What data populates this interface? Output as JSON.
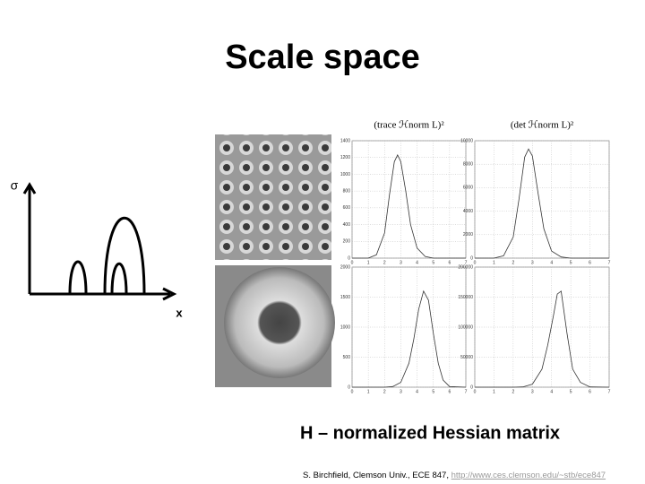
{
  "title": "Scale space",
  "sigma_label": "σ",
  "x_label": "x",
  "caption": "H – normalized Hessian matrix",
  "footer": {
    "text": "S. Birchfield, Clemson Univ., ECE 847, ",
    "link": "http://www.ces.clemson.edu/~stb/ece847"
  },
  "plots": [
    {
      "header": "(trace ℋnorm L)²",
      "xlim": [
        0,
        7
      ],
      "xticks": [
        0,
        1,
        2,
        3,
        4,
        5,
        6,
        7
      ],
      "ylim": [
        0,
        1400
      ],
      "yticks": [
        0,
        200,
        400,
        600,
        800,
        1000,
        1200,
        1400
      ],
      "x": [
        0,
        1,
        1.5,
        2,
        2.3,
        2.6,
        2.8,
        3,
        3.3,
        3.6,
        4,
        4.5,
        5,
        6,
        7
      ],
      "values": [
        0,
        0,
        40,
        300,
        750,
        1150,
        1230,
        1150,
        800,
        400,
        120,
        20,
        0,
        0,
        0
      ]
    },
    {
      "header": "(det ℋnorm L)²",
      "xlim": [
        0,
        7
      ],
      "xticks": [
        0,
        1,
        2,
        3,
        4,
        5,
        6,
        7
      ],
      "ylim": [
        0,
        10000
      ],
      "yticks": [
        0,
        2000,
        4000,
        6000,
        8000,
        10000
      ],
      "x": [
        0,
        1,
        1.5,
        2,
        2.3,
        2.6,
        2.8,
        3,
        3.3,
        3.6,
        4,
        4.5,
        5,
        6,
        7
      ],
      "values": [
        0,
        0,
        200,
        1800,
        5000,
        8600,
        9300,
        8700,
        5500,
        2500,
        600,
        100,
        0,
        0,
        0
      ]
    },
    {
      "xlim": [
        0,
        7
      ],
      "xticks": [
        0,
        1,
        2,
        3,
        4,
        5,
        6,
        7
      ],
      "ylim": [
        0,
        2000
      ],
      "yticks": [
        0,
        500,
        1000,
        1500,
        2000
      ],
      "x": [
        0,
        2,
        2.5,
        3,
        3.5,
        3.8,
        4.1,
        4.4,
        4.7,
        5,
        5.3,
        5.6,
        6,
        7
      ],
      "values": [
        0,
        0,
        10,
        80,
        400,
        800,
        1300,
        1600,
        1450,
        900,
        400,
        120,
        10,
        0
      ]
    },
    {
      "xlim": [
        0,
        7
      ],
      "xticks": [
        0,
        1,
        2,
        3,
        4,
        5,
        6,
        7
      ],
      "ylim": [
        0,
        200000
      ],
      "yticks": [
        0,
        50000,
        100000,
        150000,
        200000
      ],
      "x": [
        0,
        2,
        2.5,
        3,
        3.5,
        3.8,
        4.1,
        4.3,
        4.5,
        4.8,
        5.1,
        5.5,
        6,
        7
      ],
      "values": [
        0,
        0,
        500,
        5000,
        30000,
        70000,
        120000,
        155000,
        160000,
        90000,
        30000,
        8000,
        500,
        0
      ]
    }
  ]
}
